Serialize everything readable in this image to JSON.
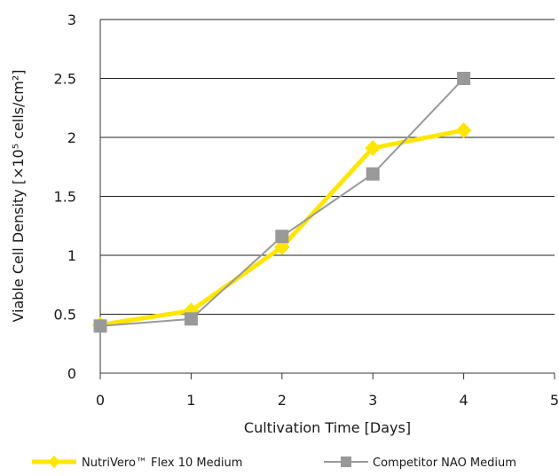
{
  "chart_data": {
    "type": "line",
    "x": [
      0,
      1,
      2,
      3,
      4
    ],
    "xlim": [
      0,
      5
    ],
    "ylim": [
      0,
      3
    ],
    "xticks": [
      "0",
      "1",
      "2",
      "3",
      "4",
      "5"
    ],
    "yticks": [
      "0",
      "0.5",
      "1",
      "1.5",
      "2",
      "2.5",
      "3"
    ],
    "xlabel": "Cultivation Time [Days]",
    "ylabel": "Viable Cell Density [×10⁵ cells/cm²]",
    "grid": "horizontal",
    "legend_position": "bottom",
    "series": [
      {
        "name": "NutriVero™ Flex 10 Medium",
        "values": [
          0.41,
          0.53,
          1.07,
          1.91,
          2.06
        ],
        "color": "#ffe600",
        "marker": "diamond"
      },
      {
        "name": "Competitor NAO Medium",
        "values": [
          0.4,
          0.46,
          1.16,
          1.69,
          2.5
        ],
        "color": "#999999",
        "marker": "square"
      }
    ]
  }
}
